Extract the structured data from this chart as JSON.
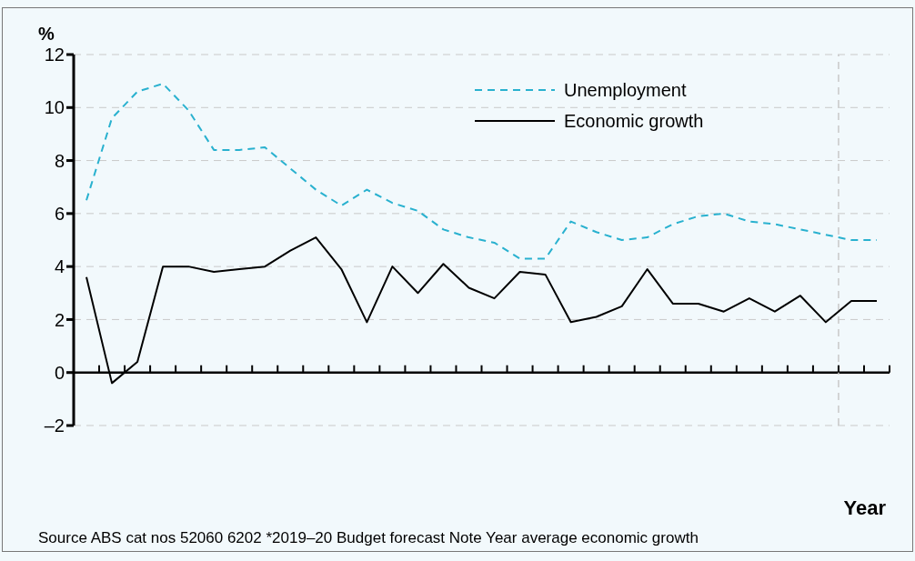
{
  "chart_data": {
    "type": "line",
    "ylabel": "%",
    "xlabel": "Year",
    "categories": [
      null,
      null,
      null,
      null,
      null,
      null,
      null,
      null,
      null,
      null,
      null,
      null,
      null,
      null,
      null,
      null,
      null,
      null,
      null,
      null,
      null,
      null,
      null,
      null,
      null,
      null,
      null,
      null,
      null,
      null,
      null,
      null
    ],
    "ylim": [
      -2,
      12
    ],
    "yticks": [
      {
        "value": -2,
        "label": "–2"
      },
      0,
      2,
      4,
      6,
      8,
      10,
      12
    ],
    "tick_labels": "y",
    "grid": "y",
    "legend": "top right",
    "marker": "none",
    "series": [
      {
        "name": "Unemployment",
        "color": "#29b1cf",
        "line_style": "dashed",
        "values": [
          6.5,
          9.6,
          10.6,
          10.9,
          9.9,
          8.4,
          8.4,
          8.5,
          7.7,
          6.9,
          6.3,
          6.9,
          6.4,
          6.1,
          5.4,
          5.1,
          4.9,
          4.3,
          4.3,
          5.7,
          5.3,
          5.0,
          5.1,
          5.6,
          5.9,
          6.0,
          5.7,
          5.6,
          5.4,
          5.2,
          5.0,
          5.0
        ]
      },
      {
        "name": "Economic growth",
        "color": "#000000",
        "line_style": "solid",
        "values": [
          3.6,
          -0.4,
          0.4,
          4.0,
          4.0,
          3.8,
          3.9,
          4.0,
          4.6,
          5.1,
          3.9,
          1.9,
          4.0,
          3.0,
          4.1,
          3.2,
          2.8,
          3.8,
          3.7,
          1.9,
          2.1,
          2.5,
          3.9,
          2.6,
          2.6,
          2.3,
          2.8,
          2.3,
          2.9,
          1.9,
          2.7,
          2.7
        ]
      }
    ],
    "annotations": [
      "Source ABS cat nos 52060 6202 *2019–20 Budget forecast Note Year average economic growth"
    ]
  }
}
